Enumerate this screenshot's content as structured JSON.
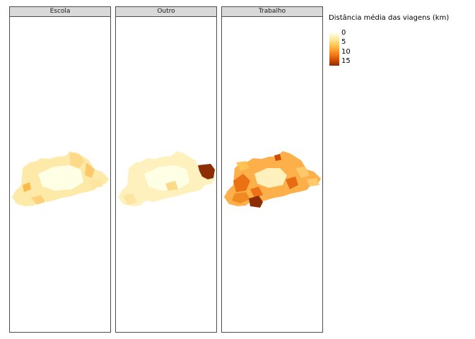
{
  "legend": {
    "title": "Distância média das viagens (km)",
    "ticks": [
      "0",
      "5",
      "10",
      "15"
    ],
    "colors": [
      "#ffffe5",
      "#fee391",
      "#fec44f",
      "#fe9929",
      "#ec7014",
      "#cc4c02",
      "#8c2d04"
    ]
  },
  "facets": [
    {
      "label": "Escola"
    },
    {
      "label": "Outro"
    },
    {
      "label": "Trabalho"
    }
  ]
}
